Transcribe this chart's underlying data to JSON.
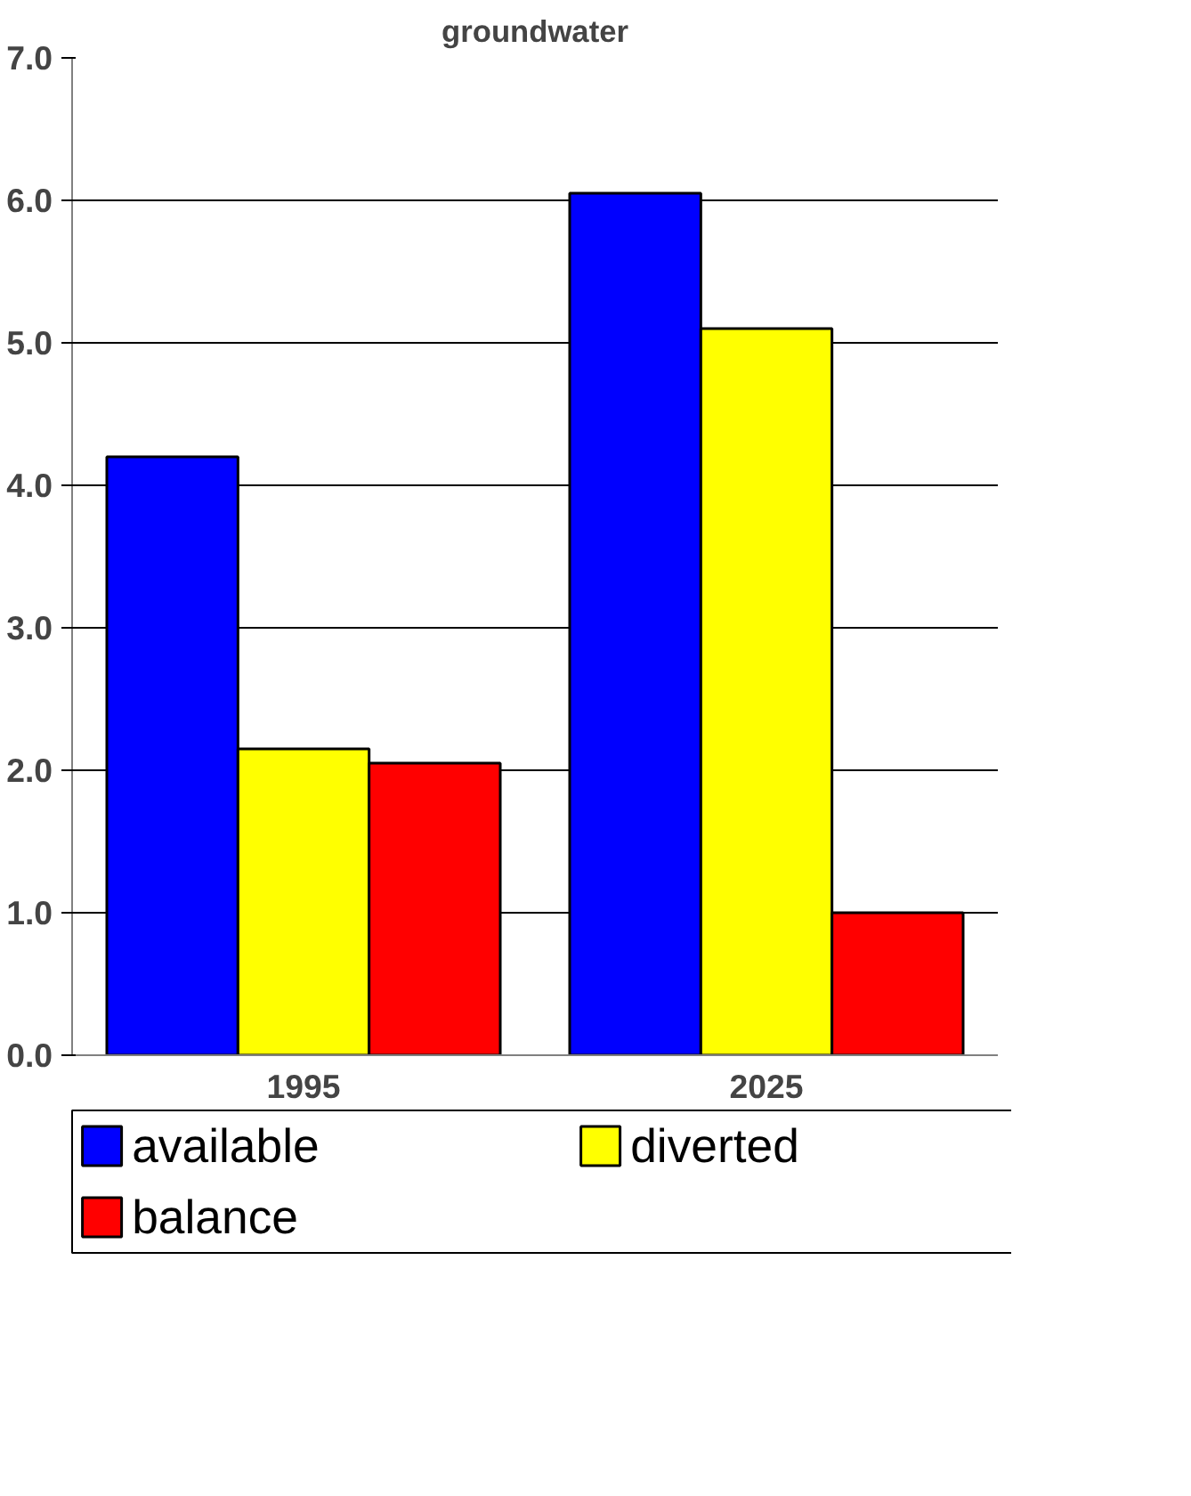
{
  "chart_data": {
    "type": "bar",
    "title": "groundwater",
    "categories": [
      "1995",
      "2025"
    ],
    "series": [
      {
        "name": "available",
        "color": "#0000ff",
        "values": [
          4.2,
          6.05
        ]
      },
      {
        "name": "diverted",
        "color": "#ffff00",
        "values": [
          2.15,
          5.1
        ]
      },
      {
        "name": "balance",
        "color": "#ff0000",
        "values": [
          2.05,
          1.0
        ]
      }
    ],
    "ylim": [
      0,
      7
    ],
    "yticks": [
      {
        "value": 0,
        "label": "0.0"
      },
      {
        "value": 1,
        "label": "1.0"
      },
      {
        "value": 2,
        "label": "2.0"
      },
      {
        "value": 3,
        "label": "3.0"
      },
      {
        "value": 4,
        "label": "4.0"
      },
      {
        "value": 5,
        "label": "5.0"
      },
      {
        "value": 6,
        "label": "6.0"
      },
      {
        "value": 7,
        "label": "7.0"
      }
    ],
    "grid": "y",
    "legend": "bottom"
  }
}
